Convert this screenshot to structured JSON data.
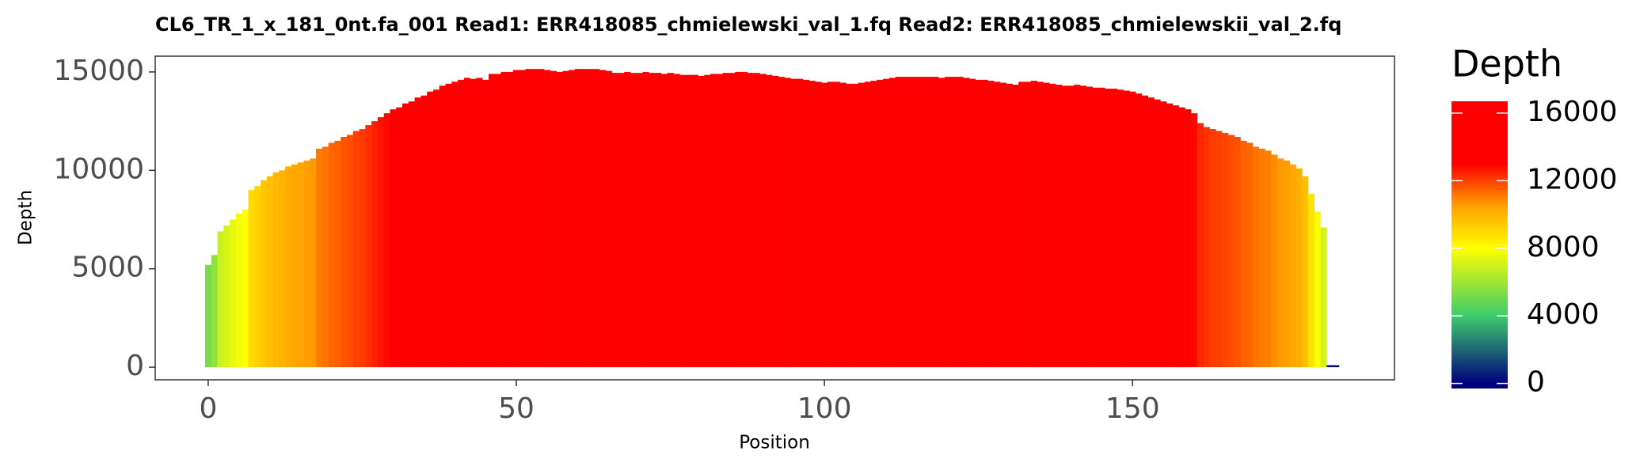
{
  "chart_data": {
    "type": "bar",
    "title": "CL6_TR_1_x_181_0nt.fa_001   Read1: ERR418085_chmielewski_val_1.fq   Read2: ERR418085_chmielewskii_val_2.fq",
    "x_label": "Position",
    "y_label": "Depth",
    "x": [
      0,
      1,
      2,
      3,
      4,
      5,
      6,
      7,
      8,
      9,
      10,
      11,
      12,
      13,
      14,
      15,
      16,
      17,
      18,
      19,
      20,
      21,
      22,
      23,
      24,
      25,
      26,
      27,
      28,
      29,
      30,
      31,
      32,
      33,
      34,
      35,
      36,
      37,
      38,
      39,
      40,
      41,
      42,
      43,
      44,
      45,
      46,
      47,
      48,
      49,
      50,
      51,
      52,
      53,
      54,
      55,
      56,
      57,
      58,
      59,
      60,
      61,
      62,
      63,
      64,
      65,
      66,
      67,
      68,
      69,
      70,
      71,
      72,
      73,
      74,
      75,
      76,
      77,
      78,
      79,
      80,
      81,
      82,
      83,
      84,
      85,
      86,
      87,
      88,
      89,
      90,
      91,
      92,
      93,
      94,
      95,
      96,
      97,
      98,
      99,
      100,
      101,
      102,
      103,
      104,
      105,
      106,
      107,
      108,
      109,
      110,
      111,
      112,
      113,
      114,
      115,
      116,
      117,
      118,
      119,
      120,
      121,
      122,
      123,
      124,
      125,
      126,
      127,
      128,
      129,
      130,
      131,
      132,
      133,
      134,
      135,
      136,
      137,
      138,
      139,
      140,
      141,
      142,
      143,
      144,
      145,
      146,
      147,
      148,
      149,
      150,
      151,
      152,
      153,
      154,
      155,
      156,
      157,
      158,
      159,
      160,
      161,
      162,
      163,
      164,
      165,
      166,
      167,
      168,
      169,
      170,
      171,
      172,
      173,
      174,
      175,
      176,
      177,
      178,
      179,
      180,
      181,
      182,
      183
    ],
    "values": [
      5200,
      5700,
      6900,
      7200,
      7500,
      7800,
      8000,
      9000,
      9200,
      9500,
      9700,
      9900,
      10000,
      10200,
      10300,
      10400,
      10500,
      10600,
      11100,
      11200,
      11400,
      11500,
      11700,
      11800,
      12000,
      12100,
      12300,
      12500,
      12700,
      12900,
      13100,
      13200,
      13400,
      13500,
      13700,
      13800,
      14000,
      14100,
      14300,
      14400,
      14500,
      14600,
      14700,
      14650,
      14700,
      14600,
      14900,
      14900,
      15000,
      15000,
      15100,
      15100,
      15150,
      15150,
      15150,
      15100,
      15050,
      15000,
      15050,
      15100,
      15150,
      15150,
      15150,
      15150,
      15100,
      15050,
      14950,
      14950,
      15000,
      14950,
      14950,
      15000,
      14950,
      14950,
      14900,
      14950,
      14900,
      14850,
      14850,
      14850,
      14800,
      14850,
      14900,
      14900,
      14950,
      14950,
      15000,
      15000,
      14950,
      14950,
      14900,
      14850,
      14800,
      14750,
      14700,
      14650,
      14650,
      14600,
      14550,
      14500,
      14450,
      14500,
      14500,
      14450,
      14400,
      14400,
      14450,
      14500,
      14550,
      14600,
      14650,
      14700,
      14750,
      14750,
      14750,
      14750,
      14750,
      14750,
      14750,
      14700,
      14750,
      14750,
      14750,
      14700,
      14650,
      14600,
      14600,
      14550,
      14500,
      14450,
      14400,
      14350,
      14500,
      14500,
      14550,
      14500,
      14450,
      14400,
      14350,
      14300,
      14300,
      14350,
      14300,
      14250,
      14200,
      14200,
      14150,
      14150,
      14100,
      14050,
      14000,
      13900,
      13800,
      13700,
      13600,
      13500,
      13400,
      13300,
      13200,
      13100,
      12900,
      12400,
      12200,
      12100,
      12000,
      11900,
      11800,
      11700,
      11500,
      11400,
      11200,
      11100,
      11000,
      10800,
      10600,
      10500,
      10300,
      10100,
      9700,
      8800,
      7900,
      7100,
      100,
      100
    ],
    "xlim": [
      -8.6,
      192.5
    ],
    "xticks": [
      0,
      50,
      100,
      150
    ],
    "ylim": [
      -640,
      15800
    ],
    "yticks": [
      0,
      5000,
      10000,
      15000
    ],
    "color_scale": {
      "name": "Depth",
      "limits": [
        -300,
        16700
      ],
      "stops": [
        0,
        4000,
        8000,
        10500,
        13000,
        16700
      ],
      "colors": [
        "#00007f",
        "#3ccc6a",
        "#ffff00",
        "#ffa000",
        "#ff0000",
        "#ff0000"
      ],
      "ticks": [
        0,
        4000,
        8000,
        12000,
        16000
      ]
    }
  }
}
